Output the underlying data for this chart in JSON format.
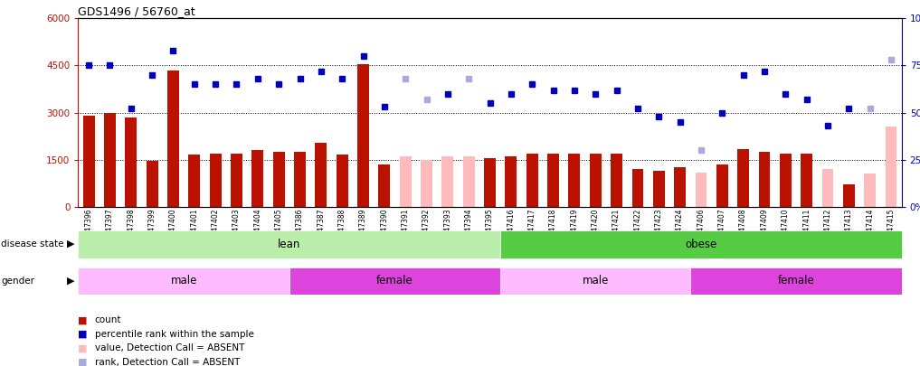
{
  "title": "GDS1496 / 56760_at",
  "samples": [
    "GSM47396",
    "GSM47397",
    "GSM47398",
    "GSM47399",
    "GSM47400",
    "GSM47401",
    "GSM47402",
    "GSM47403",
    "GSM47404",
    "GSM47405",
    "GSM47386",
    "GSM47387",
    "GSM47388",
    "GSM47389",
    "GSM47390",
    "GSM47391",
    "GSM47392",
    "GSM47393",
    "GSM47394",
    "GSM47395",
    "GSM47416",
    "GSM47417",
    "GSM47418",
    "GSM47419",
    "GSM47420",
    "GSM47421",
    "GSM47422",
    "GSM47423",
    "GSM47424",
    "GSM47406",
    "GSM47407",
    "GSM47408",
    "GSM47409",
    "GSM47410",
    "GSM47411",
    "GSM47412",
    "GSM47413",
    "GSM47414",
    "GSM47415"
  ],
  "count_values": [
    2900,
    3000,
    2850,
    1450,
    4350,
    1650,
    1700,
    1700,
    1800,
    1750,
    1750,
    2050,
    1650,
    4550,
    1350,
    1600,
    1500,
    1600,
    1600,
    1550,
    1600,
    1700,
    1700,
    1700,
    1700,
    1700,
    1200,
    1150,
    1250,
    1100,
    1350,
    1850,
    1750,
    1700,
    1700,
    1200,
    700,
    1050,
    2550
  ],
  "absent_bar_indices": [
    15,
    16,
    17,
    18,
    29,
    35,
    37,
    38
  ],
  "absent_dot_indices": [
    15,
    16,
    18,
    29,
    37,
    38
  ],
  "percentile_values": [
    75,
    75,
    52,
    70,
    83,
    65,
    65,
    65,
    68,
    65,
    68,
    72,
    68,
    80,
    53,
    68,
    57,
    60,
    68,
    55,
    60,
    65,
    62,
    62,
    60,
    62,
    52,
    48,
    45,
    30,
    50,
    70,
    72,
    60,
    57,
    43,
    52,
    52,
    78
  ],
  "disease_state_lean_count": 20,
  "disease_state_male_lean_count": 10,
  "disease_state_male_obese_count": 9,
  "ylim_left": [
    0,
    6000
  ],
  "ylim_right": [
    0,
    100
  ],
  "yticks_left": [
    0,
    1500,
    3000,
    4500,
    6000
  ],
  "yticks_right": [
    0,
    25,
    50,
    75,
    100
  ],
  "bar_color": "#bb1100",
  "absent_bar_color": "#ffbbbb",
  "dot_color": "#0000bb",
  "absent_dot_color": "#aaaadd",
  "lean_light_color": "#bbeeaa",
  "obese_color": "#55cc44",
  "male_color_light": "#ffbbff",
  "female_color": "#dd44dd",
  "background_color": "#ffffff"
}
